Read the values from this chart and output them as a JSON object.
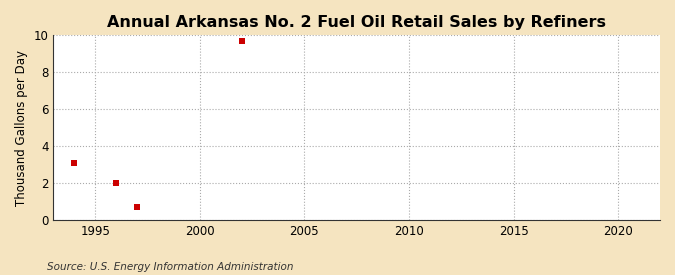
{
  "title": "Annual Arkansas No. 2 Fuel Oil Retail Sales by Refiners",
  "ylabel": "Thousand Gallons per Day",
  "source": "Source: U.S. Energy Information Administration",
  "x_data": [
    1994,
    1996,
    1997,
    2002
  ],
  "y_data": [
    3.1,
    2.0,
    0.7,
    9.7
  ],
  "marker_color": "#cc0000",
  "marker": "s",
  "marker_size": 4,
  "xlim": [
    1993,
    2022
  ],
  "ylim": [
    0,
    10
  ],
  "xticks": [
    1995,
    2000,
    2005,
    2010,
    2015,
    2020
  ],
  "yticks": [
    0,
    2,
    4,
    6,
    8,
    10
  ],
  "fig_bg_color": "#f5e4c0",
  "plot_bg_color": "#ffffff",
  "grid_color": "#aaaaaa",
  "title_fontsize": 11.5,
  "label_fontsize": 8.5,
  "tick_fontsize": 8.5,
  "source_fontsize": 7.5
}
